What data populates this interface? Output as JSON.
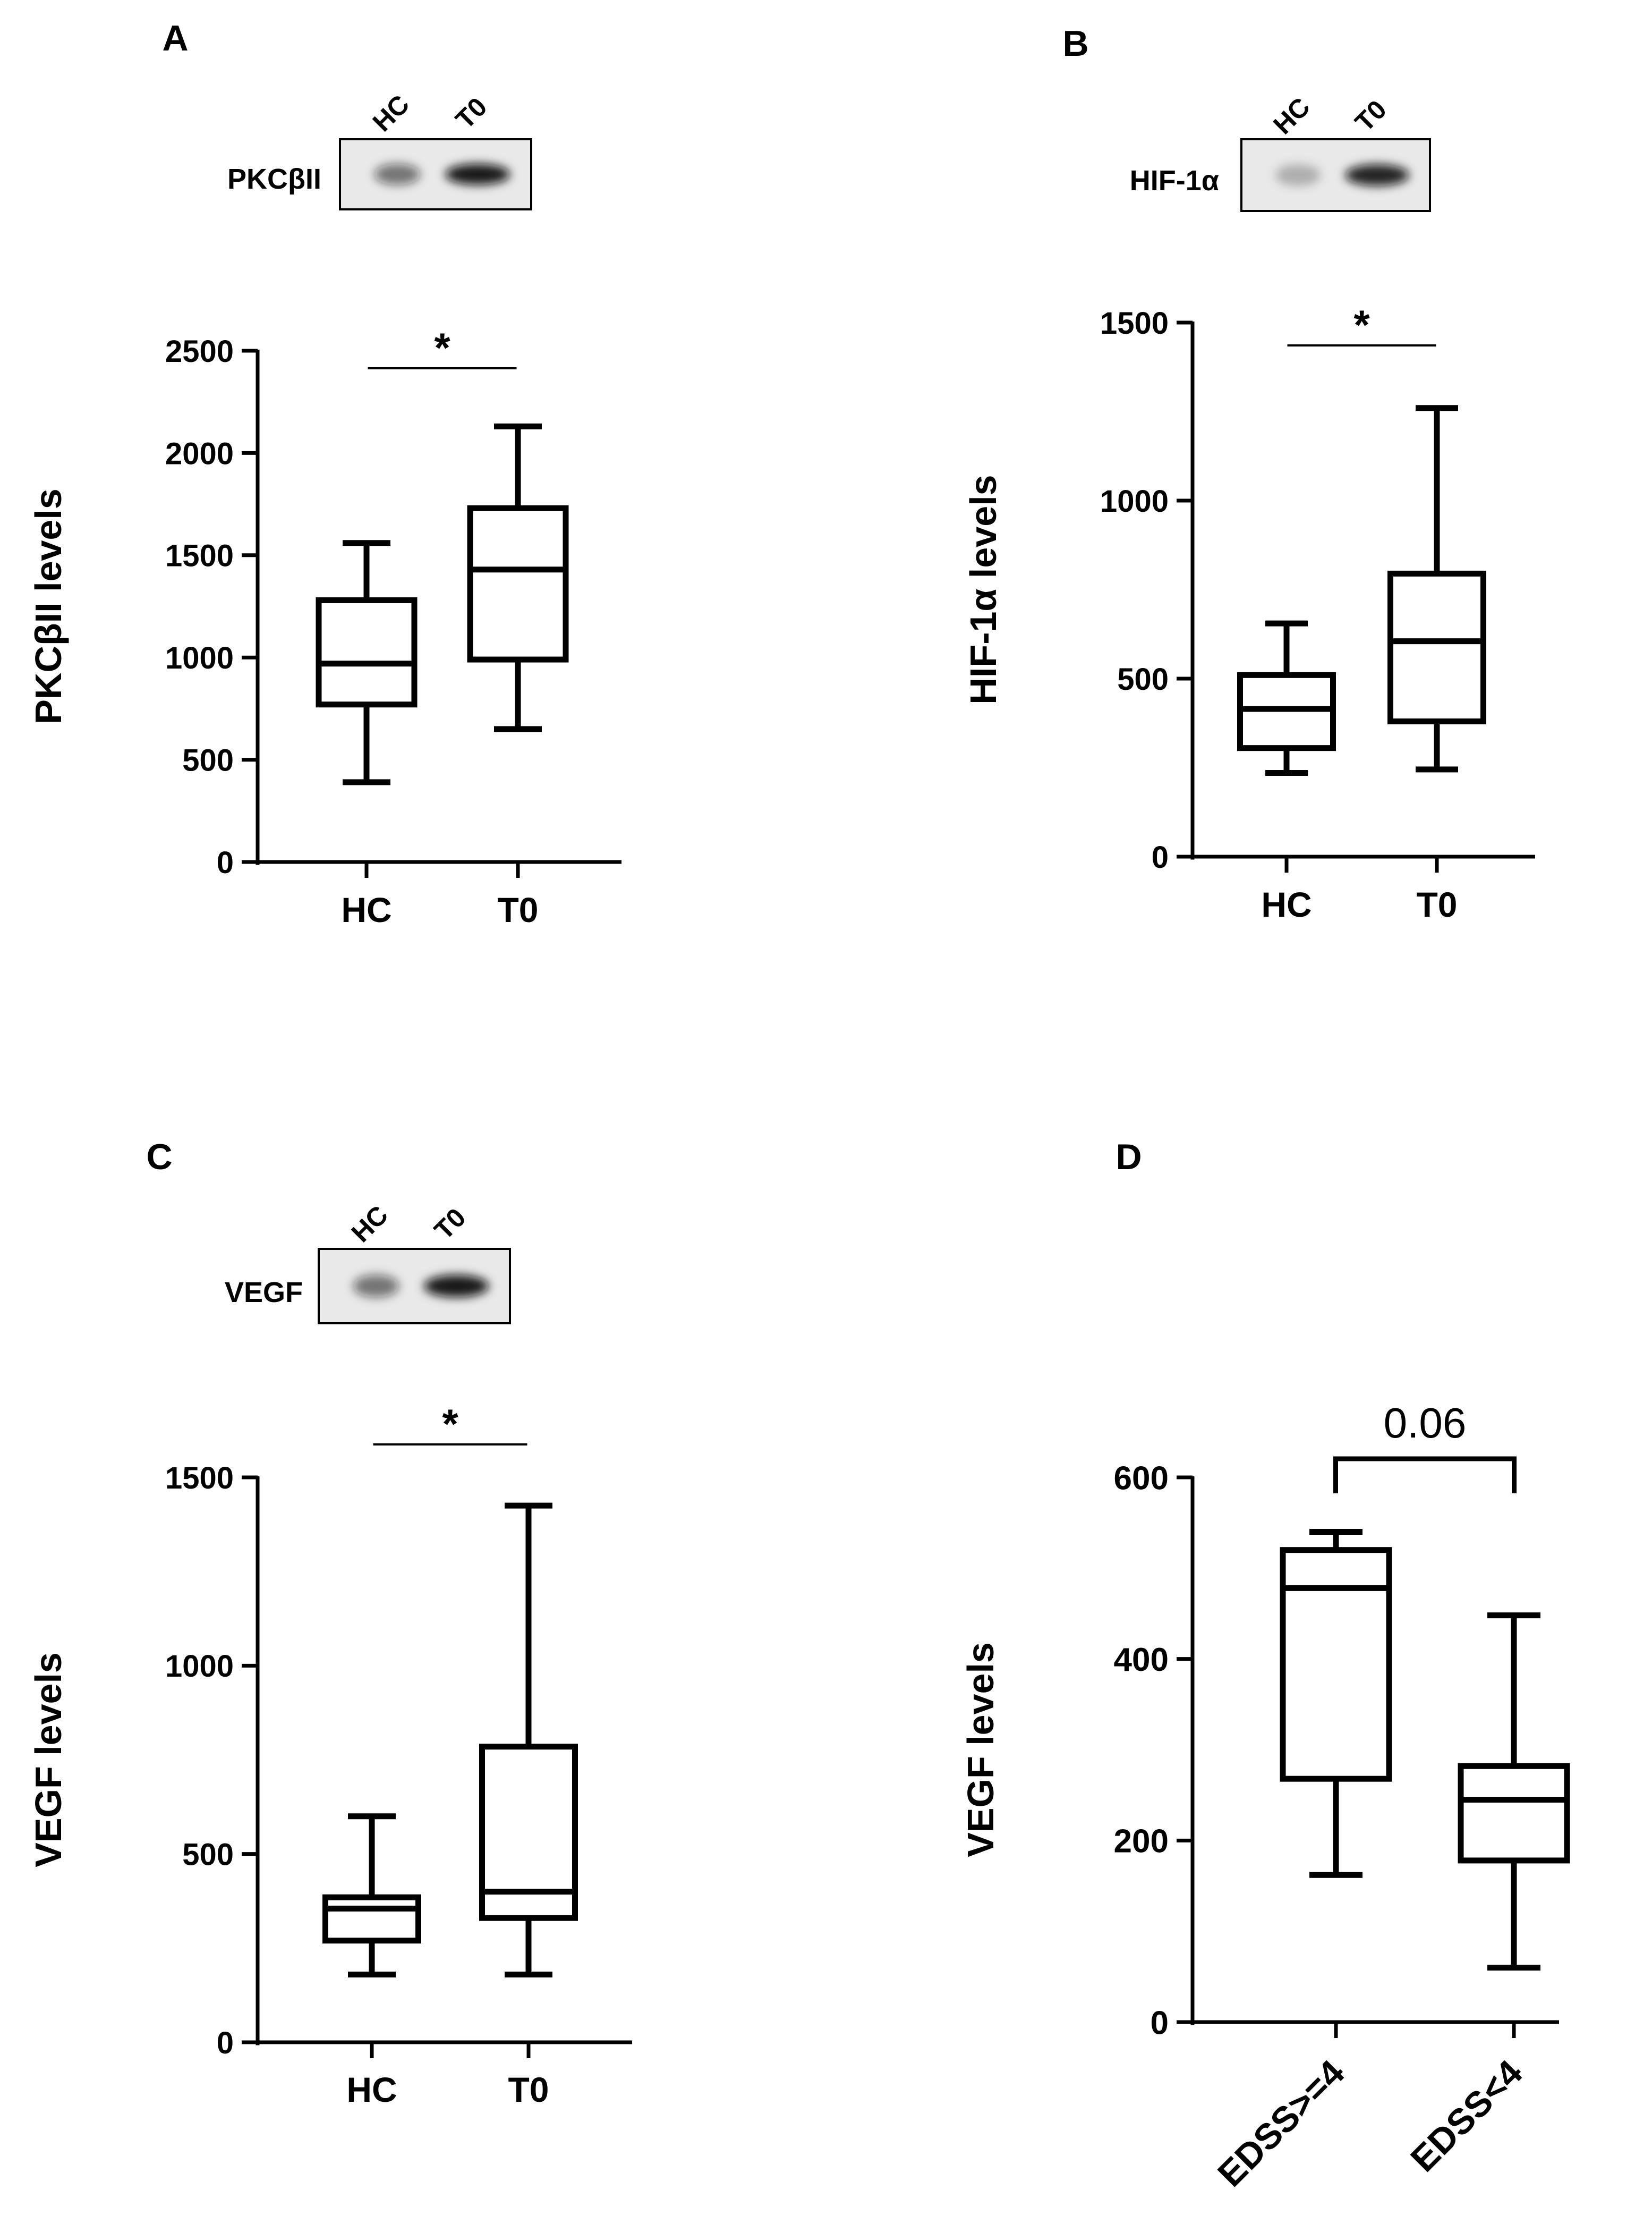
{
  "figure": {
    "background": "#ffffff",
    "ink": "#000000"
  },
  "chart_data": [
    {
      "panel": "A",
      "type": "box",
      "ylabel": "PKCβII levels",
      "ylim": [
        0,
        2500
      ],
      "yticks": [
        0,
        500,
        1000,
        1500,
        2000,
        2500
      ],
      "categories": [
        "HC",
        "T0"
      ],
      "boxes": [
        {
          "name": "HC",
          "min": 390,
          "q1": 770,
          "median": 970,
          "q3": 1280,
          "max": 1560
        },
        {
          "name": "T0",
          "min": 650,
          "q1": 990,
          "median": 1430,
          "q3": 1730,
          "max": 2130
        }
      ],
      "significance": {
        "label": "*",
        "pair": [
          "HC",
          "T0"
        ]
      },
      "blot": {
        "protein": "PKCβII",
        "lanes": [
          "HC",
          "T0"
        ],
        "band_intensity": [
          0.55,
          0.95
        ]
      }
    },
    {
      "panel": "B",
      "type": "box",
      "ylabel": "HIF-1α levels",
      "ylim": [
        0,
        1500
      ],
      "yticks": [
        0,
        500,
        1000,
        1500
      ],
      "categories": [
        "HC",
        "T0"
      ],
      "boxes": [
        {
          "name": "HC",
          "min": 235,
          "q1": 305,
          "median": 415,
          "q3": 510,
          "max": 655
        },
        {
          "name": "T0",
          "min": 245,
          "q1": 380,
          "median": 605,
          "q3": 795,
          "max": 1260
        }
      ],
      "significance": {
        "label": "*",
        "pair": [
          "HC",
          "T0"
        ]
      },
      "blot": {
        "protein": "HIF-1α",
        "lanes": [
          "HC",
          "T0"
        ],
        "band_intensity": [
          0.25,
          0.9
        ]
      }
    },
    {
      "panel": "C",
      "type": "box",
      "ylabel": "VEGF levels",
      "ylim": [
        0,
        1500
      ],
      "yticks": [
        0,
        500,
        1000,
        1500
      ],
      "categories": [
        "HC",
        "T0"
      ],
      "boxes": [
        {
          "name": "HC",
          "min": 180,
          "q1": 270,
          "median": 355,
          "q3": 385,
          "max": 600
        },
        {
          "name": "T0",
          "min": 180,
          "q1": 330,
          "median": 400,
          "q3": 785,
          "max": 1425
        }
      ],
      "significance": {
        "label": "*",
        "pair": [
          "HC",
          "T0"
        ]
      },
      "blot": {
        "protein": "VEGF",
        "lanes": [
          "HC",
          "T0"
        ],
        "band_intensity": [
          0.55,
          0.95
        ]
      }
    },
    {
      "panel": "D",
      "type": "box",
      "ylabel": "VEGF levels",
      "ylim": [
        0,
        600
      ],
      "yticks": [
        0,
        200,
        400,
        600
      ],
      "categories": [
        "EDSS>=4",
        "EDSS<4"
      ],
      "boxes": [
        {
          "name": "EDSS>=4",
          "min": 162,
          "q1": 268,
          "median": 478,
          "q3": 520,
          "max": 540
        },
        {
          "name": "EDSS<4",
          "min": 60,
          "q1": 178,
          "median": 245,
          "q3": 282,
          "max": 448
        }
      ],
      "significance": {
        "label": "0.06",
        "pair": [
          "EDSS>=4",
          "EDSS<4"
        ]
      }
    }
  ]
}
